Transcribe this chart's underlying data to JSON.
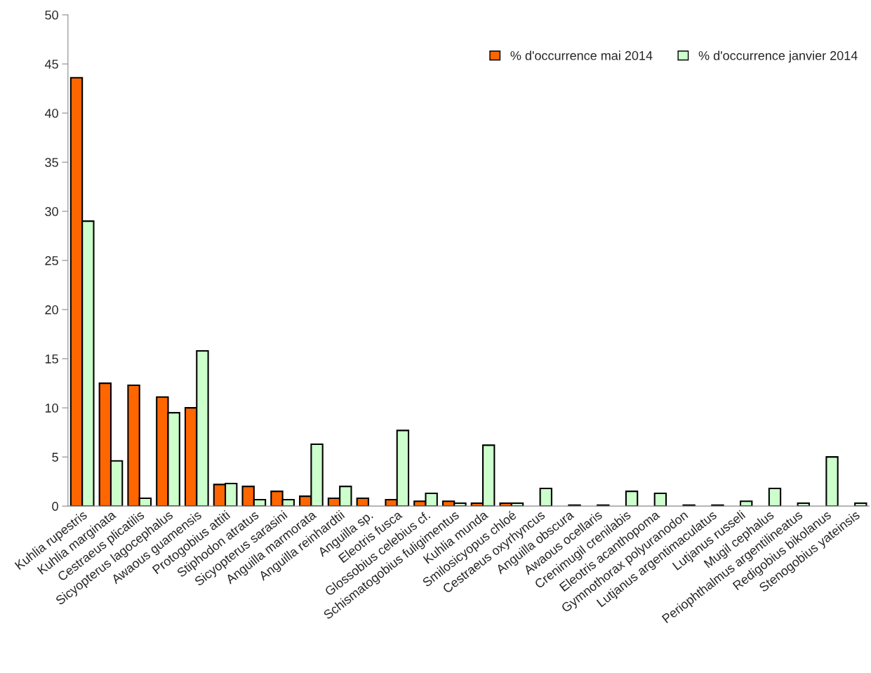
{
  "chart_data": {
    "type": "bar",
    "categories": [
      "Kuhlia rupestris",
      "Kuhlia marginata",
      "Cestraeus plicatilis",
      "Sicyopterus lagocephalus",
      "Awaous guamensis",
      "Protogobius attiti",
      "Stiphodon atratus",
      "Sicyopterus sarasini",
      "Anguilla marmorata",
      "Anguilla reinhardtii",
      "Anguilla sp.",
      "Eleotris fusca",
      "Glossobius celebius cf.",
      "Schismatogobius fuligimentus",
      "Kuhlia munda",
      "Smilosicyopus chloé",
      "Cestraeus oxyrhyncus",
      "Anguilla obscura",
      "Awaous ocellaris",
      "Crenimugil crenilabis",
      "Eleotris acanthopoma",
      "Gymnothorax polyuranodon",
      "Lutjanus argentimaculatus",
      "Lutjanus russeli",
      "Mugil cephalus",
      "Periophthalmus argentilineatus",
      "Redigobius bikolanus",
      "Stenogobius yateinsis"
    ],
    "series": [
      {
        "name": "% d'occurrence mai 2014",
        "color": "#ff6600",
        "values": [
          43.6,
          12.5,
          12.3,
          11.1,
          10.0,
          2.2,
          2.0,
          1.5,
          1.0,
          0.8,
          0.8,
          0.66,
          0.5,
          0.5,
          0.3,
          0.3,
          null,
          null,
          null,
          null,
          null,
          null,
          null,
          null,
          null,
          null,
          null,
          null
        ]
      },
      {
        "name": "% d'occurrence janvier 2014",
        "color": "#ccffcc",
        "values": [
          29.0,
          4.6,
          0.8,
          9.5,
          15.8,
          2.3,
          0.66,
          0.66,
          6.3,
          2.0,
          null,
          7.7,
          1.3,
          0.3,
          6.2,
          0.3,
          1.8,
          0.1,
          0.1,
          1.5,
          1.3,
          0.1,
          0.1,
          0.5,
          1.8,
          0.3,
          5.0,
          0.3
        ]
      }
    ],
    "ylim": [
      0,
      50
    ],
    "yticks": [
      0,
      5,
      10,
      15,
      20,
      25,
      30,
      35,
      40,
      45,
      50
    ],
    "grid": false,
    "legend": "top right"
  }
}
